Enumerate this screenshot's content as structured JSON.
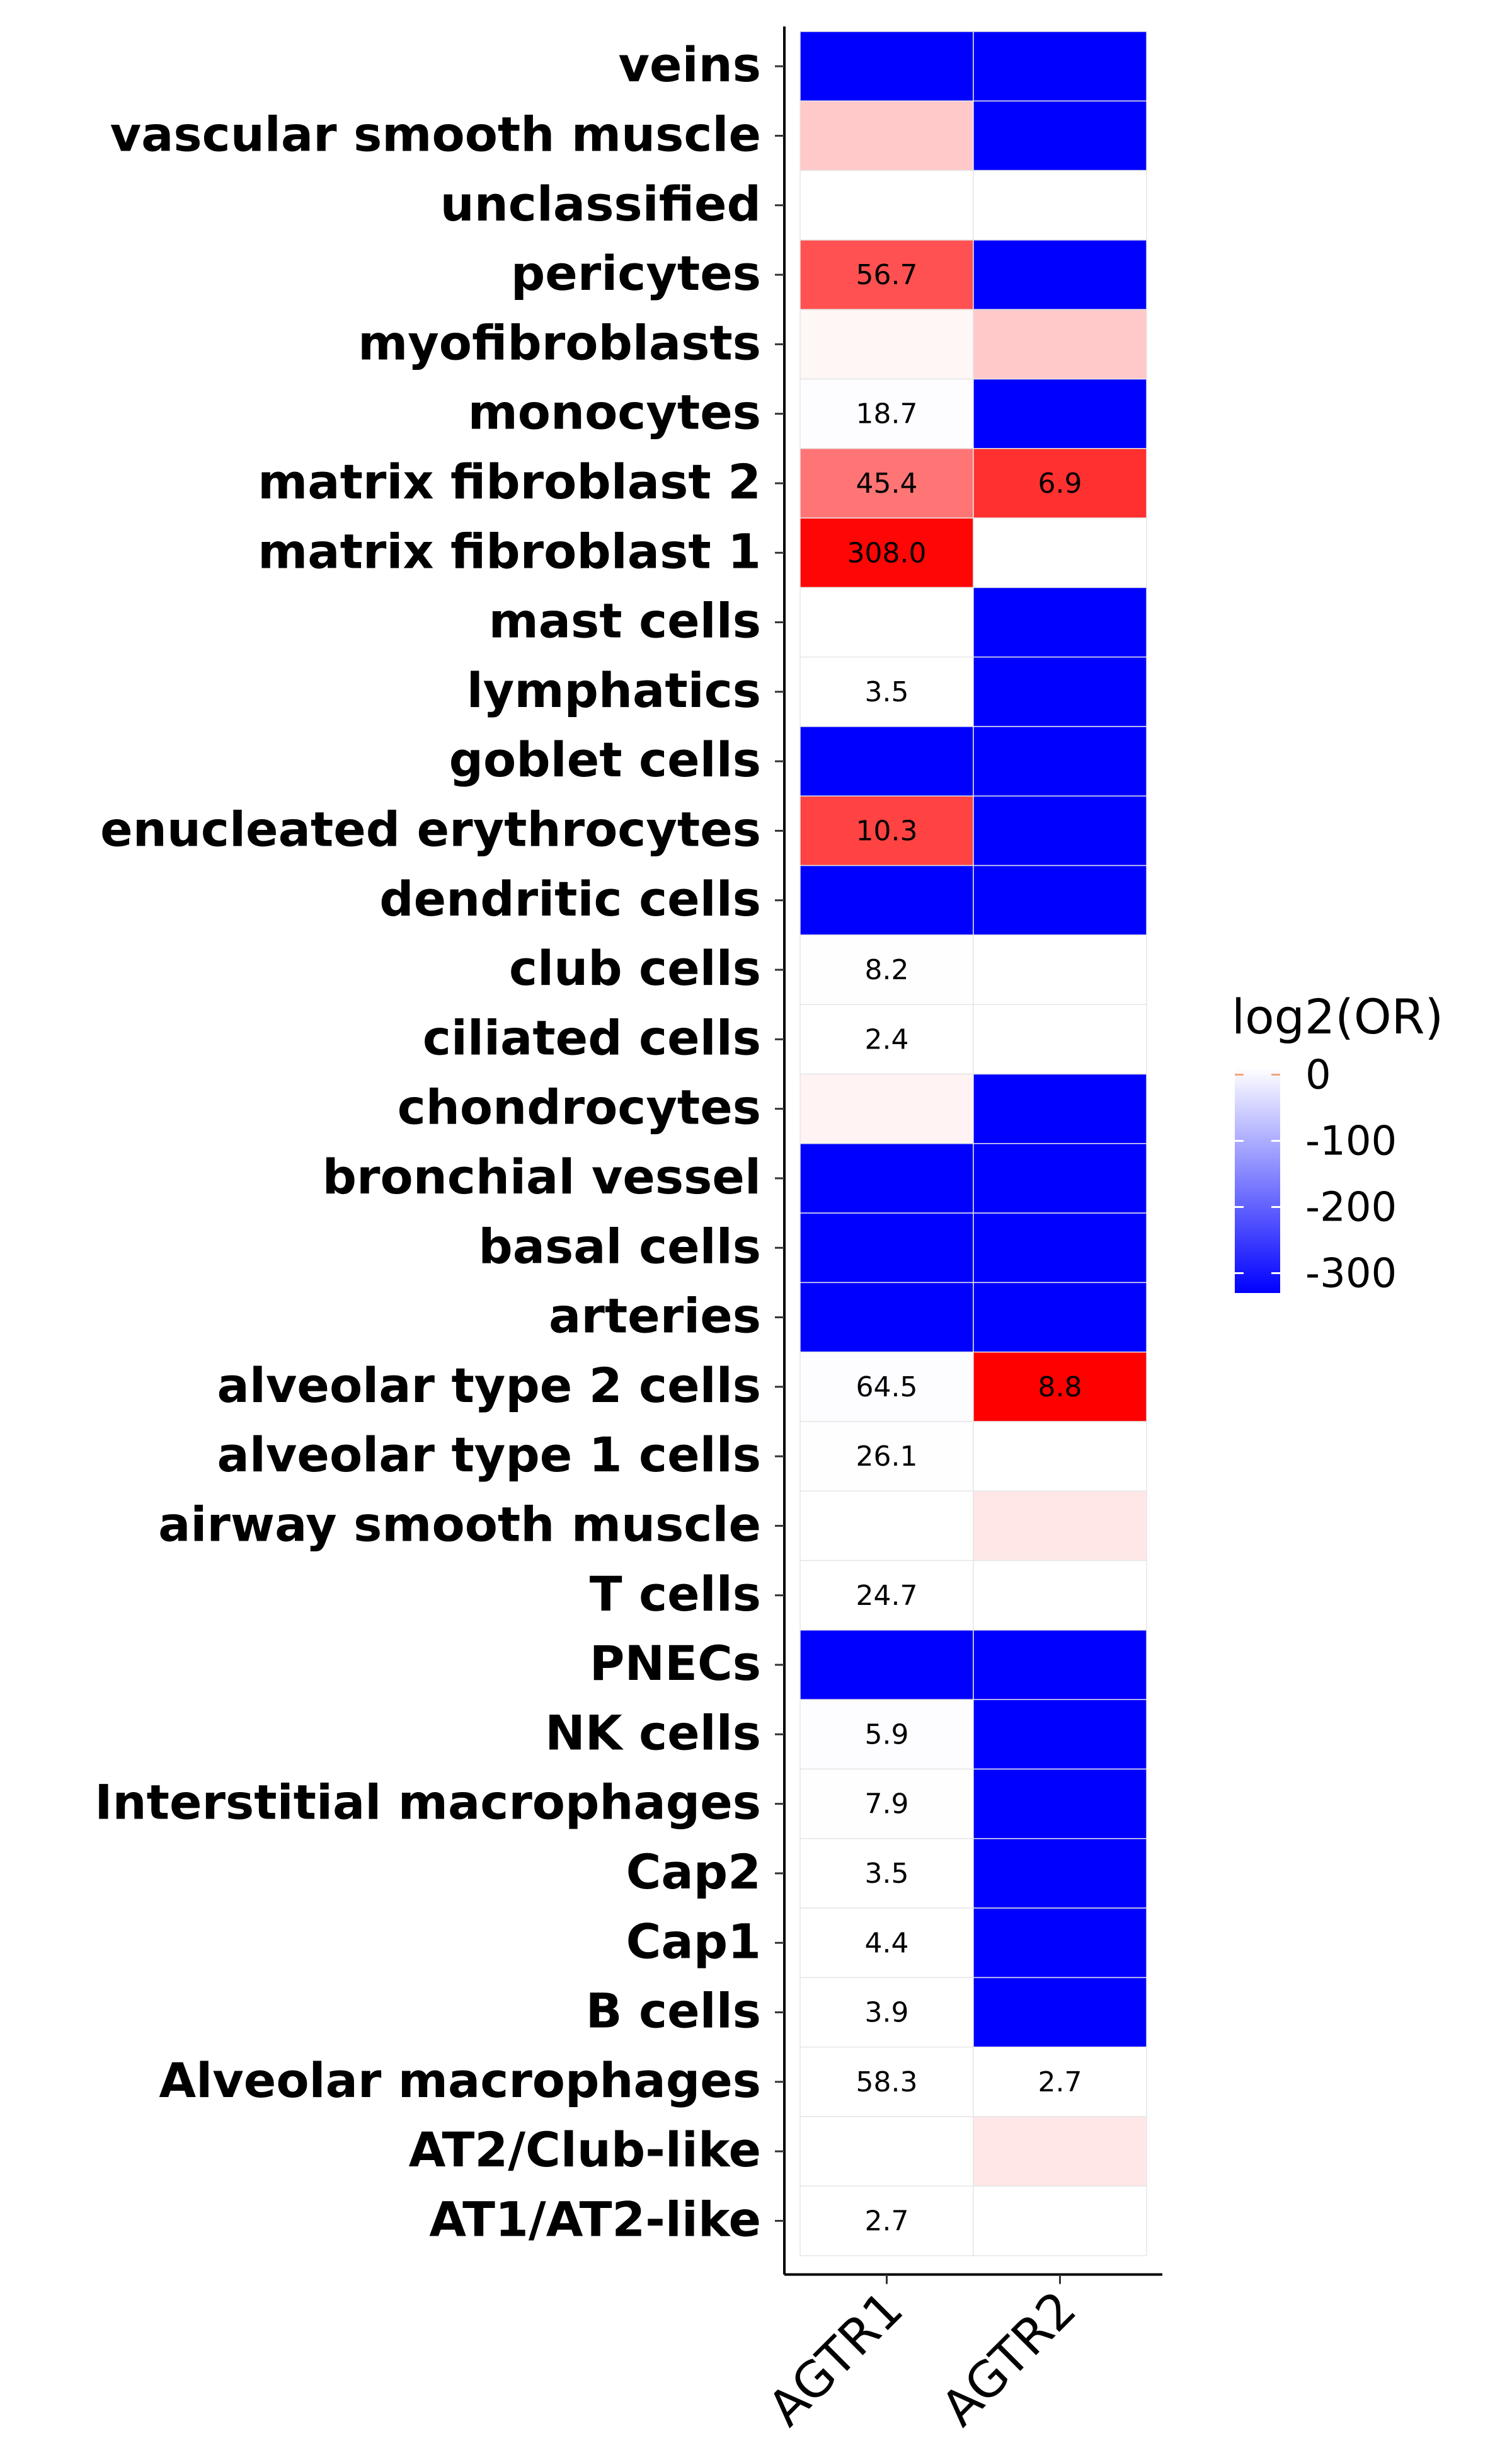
{
  "chart_data": {
    "type": "heatmap",
    "title": "",
    "xlabel": "",
    "ylabel": "",
    "columns": [
      "AGTR1",
      "AGTR2"
    ],
    "rows": [
      "veins",
      "vascular smooth muscle",
      "unclassified",
      "pericytes",
      "myofibroblasts",
      "monocytes",
      "matrix fibroblast 2",
      "matrix fibroblast 1",
      "mast cells",
      "lymphatics",
      "goblet cells",
      "enucleated erythrocytes",
      "dendritic cells",
      "club cells",
      "ciliated cells",
      "chondrocytes",
      "bronchial vessel",
      "basal cells",
      "arteries",
      "alveolar type 2 cells",
      "alveolar type 1 cells",
      "airway smooth muscle",
      "T cells",
      "PNECs",
      "NK cells",
      "Interstitial macrophages",
      "Cap2",
      "Cap1",
      "B cells",
      "Alveolar macrophages",
      "AT2/Club-like",
      "AT1/AT2-like"
    ],
    "values": [
      [
        -330,
        -330
      ],
      [
        1.8,
        -330
      ],
      [
        0,
        0
      ],
      [
        5.8,
        -330
      ],
      [
        0.3,
        1.8
      ],
      [
        -2,
        -330
      ],
      [
        4.6,
        6.9
      ],
      [
        8.3,
        0
      ],
      [
        0,
        -330
      ],
      [
        -0.5,
        -330
      ],
      [
        -330,
        -330
      ],
      [
        6.3,
        -330
      ],
      [
        -330,
        -330
      ],
      [
        -1,
        0
      ],
      [
        -0.5,
        0
      ],
      [
        0.4,
        -330
      ],
      [
        -330,
        -330
      ],
      [
        -330,
        -330
      ],
      [
        -330,
        -330
      ],
      [
        -3,
        8.8
      ],
      [
        -0.8,
        0
      ],
      [
        0,
        0.8
      ],
      [
        -0.5,
        0
      ],
      [
        -330,
        -330
      ],
      [
        -2,
        -330
      ],
      [
        -1,
        -330
      ],
      [
        -0.5,
        -330
      ],
      [
        -0.5,
        -330
      ],
      [
        -0.5,
        -330
      ],
      [
        -0.5,
        -0.5
      ],
      [
        0,
        0.8
      ],
      [
        -0.3,
        0
      ]
    ],
    "cell_labels": [
      [
        "",
        ""
      ],
      [
        "",
        ""
      ],
      [
        "",
        ""
      ],
      [
        "56.7",
        ""
      ],
      [
        "",
        ""
      ],
      [
        "18.7",
        ""
      ],
      [
        "45.4",
        "6.9"
      ],
      [
        "308.0",
        ""
      ],
      [
        "",
        ""
      ],
      [
        "3.5",
        ""
      ],
      [
        "",
        ""
      ],
      [
        "10.3",
        ""
      ],
      [
        "",
        ""
      ],
      [
        "8.2",
        ""
      ],
      [
        "2.4",
        ""
      ],
      [
        "",
        ""
      ],
      [
        "",
        ""
      ],
      [
        "",
        ""
      ],
      [
        "",
        ""
      ],
      [
        "64.5",
        "8.8"
      ],
      [
        "26.1",
        ""
      ],
      [
        "",
        ""
      ],
      [
        "24.7",
        ""
      ],
      [
        "",
        ""
      ],
      [
        "5.9",
        ""
      ],
      [
        "7.9",
        ""
      ],
      [
        "3.5",
        ""
      ],
      [
        "4.4",
        ""
      ],
      [
        "3.9",
        ""
      ],
      [
        "58.3",
        "2.7"
      ],
      [
        "",
        ""
      ],
      [
        "2.7",
        ""
      ]
    ],
    "legend": {
      "title": "log2(OR)",
      "position": "right",
      "ticks": [
        "0",
        "-100",
        "-200",
        "-300"
      ],
      "tick_values": [
        0,
        -100,
        -200,
        -300
      ],
      "range": [
        -330,
        10
      ]
    },
    "colors": {
      "high": "#ff0000",
      "mid": "#ffffff",
      "low": "#0000ff"
    },
    "grid": false
  }
}
